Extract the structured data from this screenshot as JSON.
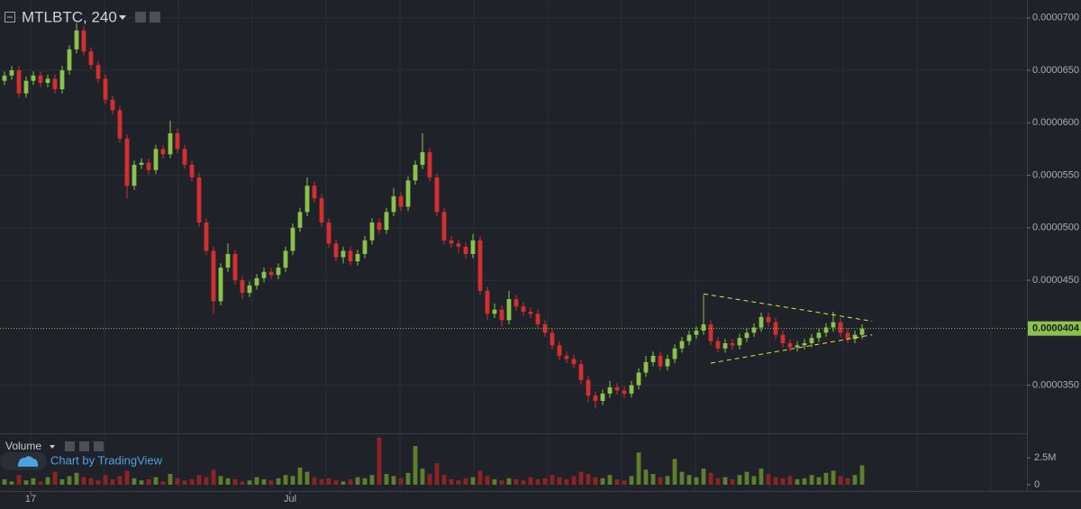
{
  "chart_data": {
    "type": "candlestick",
    "title": "MTLBTC, 240",
    "volume_title": "Volume",
    "credit": "Chart by TradingView",
    "up_color": "#8bc34a",
    "down_color": "#d32f2f",
    "volume_up_color": "#5e7f2c",
    "volume_down_color": "#8e2323",
    "grid": true,
    "xlim": [
      -0.625,
      141.875
    ],
    "xticks": [
      {
        "value": 3.625,
        "label": "17"
      },
      {
        "value": 39.625,
        "label": "Jul"
      }
    ],
    "xgrid": [
      3.625,
      13.875,
      24.125,
      34.375,
      44.625,
      54.875,
      65.125,
      75.375,
      85.625,
      95.875,
      106.125,
      116.375,
      126.625,
      136.875
    ],
    "ylim": [
      3.05e-05,
      7.17e-05
    ],
    "yticks": [
      {
        "value": 3.5e-05,
        "label": "0.0000350"
      },
      {
        "value": 4.5e-05,
        "label": "0.0000450"
      },
      {
        "value": 5e-05,
        "label": "0.0000500"
      },
      {
        "value": 5.5e-05,
        "label": "0.0000550"
      },
      {
        "value": 6e-05,
        "label": "0.0000600"
      },
      {
        "value": 6.5e-05,
        "label": "0.0000650"
      },
      {
        "value": 7e-05,
        "label": "0.0000700"
      }
    ],
    "last_price": 4.04e-05,
    "last_price_label": "0.0000404",
    "last_price_color": "#8bc34a",
    "trendline_color": "#e3e33a",
    "trendlines": [
      {
        "x": [
          97,
          120.4
        ],
        "y": [
          4.37e-05,
          4.11e-05
        ]
      },
      {
        "x": [
          98,
          120.4
        ],
        "y": [
          3.71e-05,
          3.98e-05
        ]
      }
    ],
    "open": [
      6.4e-05,
      6.45e-05,
      6.5e-05,
      6.28e-05,
      6.4e-05,
      6.45e-05,
      6.38e-05,
      6.42e-05,
      6.32e-05,
      6.5e-05,
      6.7e-05,
      6.88e-05,
      6.68e-05,
      6.55e-05,
      6.42e-05,
      6.22e-05,
      6.12e-05,
      5.85e-05,
      5.4e-05,
      5.6e-05,
      5.62e-05,
      5.55e-05,
      5.75e-05,
      5.7e-05,
      5.9e-05,
      5.75e-05,
      5.6e-05,
      5.48e-05,
      5.05e-05,
      4.78e-05,
      4.3e-05,
      4.62e-05,
      4.75e-05,
      4.5e-05,
      4.38e-05,
      4.45e-05,
      4.52e-05,
      4.58e-05,
      4.55e-05,
      4.62e-05,
      4.78e-05,
      5e-05,
      5.15e-05,
      5.4e-05,
      5.28e-05,
      5.05e-05,
      4.85e-05,
      4.72e-05,
      4.78e-05,
      4.68e-05,
      4.75e-05,
      4.88e-05,
      5.05e-05,
      4.98e-05,
      5.15e-05,
      5.3e-05,
      5.2e-05,
      5.45e-05,
      5.6e-05,
      5.72e-05,
      5.48e-05,
      5.15e-05,
      4.88e-05,
      4.85e-05,
      4.82e-05,
      4.75e-05,
      4.88e-05,
      4.4e-05,
      4.18e-05,
      4.22e-05,
      4.12e-05,
      4.32e-05,
      4.25e-05,
      4.2e-05,
      4.18e-05,
      4.08e-05,
      4e-05,
      3.88e-05,
      3.78e-05,
      3.75e-05,
      3.7e-05,
      3.55e-05,
      3.4e-05,
      3.35e-05,
      3.42e-05,
      3.48e-05,
      3.45e-05,
      3.42e-05,
      3.5e-05,
      3.62e-05,
      3.72e-05,
      3.78e-05,
      3.68e-05,
      3.75e-05,
      3.85e-05,
      3.92e-05,
      3.98e-05,
      4.02e-05,
      4.08e-05,
      3.92e-05,
      3.85e-05,
      3.9e-05,
      3.88e-05,
      3.95e-05,
      4e-05,
      4.05e-05,
      4.15e-05,
      4.1e-05,
      3.98e-05,
      3.9e-05,
      3.86e-05,
      3.88e-05,
      3.9e-05,
      3.95e-05,
      4e-05,
      4.05e-05,
      4.1e-05,
      4e-05,
      3.94e-05,
      3.98e-05
    ],
    "high": [
      6.49e-05,
      6.54e-05,
      6.54e-05,
      6.44e-05,
      6.49e-05,
      6.49e-05,
      6.46e-05,
      6.46e-05,
      6.54e-05,
      6.74e-05,
      6.95e-05,
      6.92e-05,
      6.72e-05,
      6.59e-05,
      6.46e-05,
      6.26e-05,
      6.16e-05,
      5.89e-05,
      5.64e-05,
      5.66e-05,
      5.66e-05,
      5.79e-05,
      5.79e-05,
      6.02e-05,
      5.94e-05,
      5.79e-05,
      5.64e-05,
      5.52e-05,
      5.09e-05,
      4.82e-05,
      4.66e-05,
      4.85e-05,
      4.79e-05,
      4.54e-05,
      4.49e-05,
      4.56e-05,
      4.62e-05,
      4.62e-05,
      4.66e-05,
      4.82e-05,
      5.04e-05,
      5.19e-05,
      5.48e-05,
      5.44e-05,
      5.32e-05,
      5.09e-05,
      4.89e-05,
      4.82e-05,
      4.82e-05,
      4.79e-05,
      4.92e-05,
      5.09e-05,
      5.09e-05,
      5.19e-05,
      5.38e-05,
      5.34e-05,
      5.49e-05,
      5.64e-05,
      5.9e-05,
      5.76e-05,
      5.52e-05,
      5.19e-05,
      4.92e-05,
      4.89e-05,
      4.86e-05,
      4.94e-05,
      4.92e-05,
      4.44e-05,
      4.28e-05,
      4.26e-05,
      4.4e-05,
      4.36e-05,
      4.29e-05,
      4.24e-05,
      4.22e-05,
      4.12e-05,
      4.04e-05,
      3.92e-05,
      3.82e-05,
      3.79e-05,
      3.74e-05,
      3.59e-05,
      3.44e-05,
      3.46e-05,
      3.54e-05,
      3.52e-05,
      3.49e-05,
      3.54e-05,
      3.66e-05,
      3.78e-05,
      3.82e-05,
      3.82e-05,
      3.79e-05,
      3.89e-05,
      3.96e-05,
      4.02e-05,
      4.06e-05,
      4.36e-05,
      4.12e-05,
      3.96e-05,
      3.94e-05,
      3.94e-05,
      3.99e-05,
      4.04e-05,
      4.09e-05,
      4.19e-05,
      4.19e-05,
      4.14e-05,
      4.02e-05,
      3.94e-05,
      3.92e-05,
      3.94e-05,
      3.99e-05,
      4.04e-05,
      4.09e-05,
      4.2e-05,
      4.14e-05,
      4.04e-05,
      4.02e-05,
      4.08e-05
    ],
    "low": [
      6.36e-05,
      6.41e-05,
      6.24e-05,
      6.24e-05,
      6.36e-05,
      6.34e-05,
      6.34e-05,
      6.28e-05,
      6.28e-05,
      6.46e-05,
      6.66e-05,
      6.64e-05,
      6.51e-05,
      6.38e-05,
      6.18e-05,
      6.08e-05,
      5.81e-05,
      5.28e-05,
      5.36e-05,
      5.56e-05,
      5.51e-05,
      5.51e-05,
      5.66e-05,
      5.66e-05,
      5.71e-05,
      5.56e-05,
      5.44e-05,
      5.01e-05,
      4.74e-05,
      4.18e-05,
      4.26e-05,
      4.58e-05,
      4.46e-05,
      4.32e-05,
      4.34e-05,
      4.41e-05,
      4.48e-05,
      4.51e-05,
      4.51e-05,
      4.58e-05,
      4.74e-05,
      4.96e-05,
      5.11e-05,
      5.24e-05,
      5.01e-05,
      4.81e-05,
      4.68e-05,
      4.66e-05,
      4.64e-05,
      4.64e-05,
      4.71e-05,
      4.84e-05,
      4.94e-05,
      4.94e-05,
      5.11e-05,
      5.16e-05,
      5.16e-05,
      5.41e-05,
      5.56e-05,
      5.44e-05,
      5.11e-05,
      4.84e-05,
      4.81e-05,
      4.76e-05,
      4.71e-05,
      4.71e-05,
      4.36e-05,
      4.12e-05,
      4.14e-05,
      4.06e-05,
      4.08e-05,
      4.21e-05,
      4.16e-05,
      4.14e-05,
      4.04e-05,
      3.96e-05,
      3.84e-05,
      3.74e-05,
      3.71e-05,
      3.66e-05,
      3.51e-05,
      3.34e-05,
      3.28e-05,
      3.31e-05,
      3.38e-05,
      3.41e-05,
      3.38e-05,
      3.38e-05,
      3.46e-05,
      3.58e-05,
      3.68e-05,
      3.64e-05,
      3.64e-05,
      3.71e-05,
      3.81e-05,
      3.88e-05,
      3.94e-05,
      3.98e-05,
      3.88e-05,
      3.81e-05,
      3.81e-05,
      3.84e-05,
      3.84e-05,
      3.91e-05,
      3.96e-05,
      4.01e-05,
      4.06e-05,
      3.94e-05,
      3.86e-05,
      3.82e-05,
      3.82e-05,
      3.84e-05,
      3.86e-05,
      3.91e-05,
      3.96e-05,
      4.01e-05,
      3.96e-05,
      3.9e-05,
      3.9e-05,
      3.94e-05
    ],
    "close": [
      6.45e-05,
      6.5e-05,
      6.28e-05,
      6.4e-05,
      6.45e-05,
      6.38e-05,
      6.42e-05,
      6.32e-05,
      6.5e-05,
      6.7e-05,
      6.88e-05,
      6.68e-05,
      6.55e-05,
      6.42e-05,
      6.22e-05,
      6.12e-05,
      5.85e-05,
      5.4e-05,
      5.6e-05,
      5.62e-05,
      5.55e-05,
      5.75e-05,
      5.7e-05,
      5.9e-05,
      5.75e-05,
      5.6e-05,
      5.48e-05,
      5.05e-05,
      4.78e-05,
      4.3e-05,
      4.62e-05,
      4.75e-05,
      4.5e-05,
      4.38e-05,
      4.45e-05,
      4.52e-05,
      4.58e-05,
      4.55e-05,
      4.62e-05,
      4.78e-05,
      5e-05,
      5.15e-05,
      5.4e-05,
      5.28e-05,
      5.05e-05,
      4.85e-05,
      4.72e-05,
      4.78e-05,
      4.68e-05,
      4.75e-05,
      4.88e-05,
      5.05e-05,
      4.98e-05,
      5.15e-05,
      5.3e-05,
      5.2e-05,
      5.45e-05,
      5.6e-05,
      5.72e-05,
      5.48e-05,
      5.15e-05,
      4.88e-05,
      4.85e-05,
      4.82e-05,
      4.75e-05,
      4.88e-05,
      4.4e-05,
      4.18e-05,
      4.22e-05,
      4.12e-05,
      4.32e-05,
      4.25e-05,
      4.2e-05,
      4.18e-05,
      4.08e-05,
      4e-05,
      3.88e-05,
      3.78e-05,
      3.75e-05,
      3.7e-05,
      3.55e-05,
      3.4e-05,
      3.35e-05,
      3.42e-05,
      3.48e-05,
      3.45e-05,
      3.42e-05,
      3.5e-05,
      3.62e-05,
      3.72e-05,
      3.78e-05,
      3.68e-05,
      3.75e-05,
      3.85e-05,
      3.92e-05,
      3.98e-05,
      4.02e-05,
      4.08e-05,
      3.92e-05,
      3.85e-05,
      3.9e-05,
      3.88e-05,
      3.95e-05,
      4e-05,
      4.05e-05,
      4.15e-05,
      4.1e-05,
      3.98e-05,
      3.9e-05,
      3.86e-05,
      3.88e-05,
      3.9e-05,
      3.95e-05,
      4e-05,
      4.05e-05,
      4.1e-05,
      4e-05,
      3.94e-05,
      3.98e-05,
      4.04e-05
    ],
    "volume": [
      500000,
      300000,
      900000,
      400000,
      600000,
      300000,
      700000,
      1200000,
      500000,
      800000,
      1100000,
      700000,
      600000,
      400000,
      900000,
      500000,
      800000,
      1300000,
      600000,
      400000,
      500000,
      700000,
      300000,
      1000000,
      600000,
      400000,
      500000,
      900000,
      700000,
      1400000,
      800000,
      600000,
      500000,
      300000,
      400000,
      700000,
      500000,
      400000,
      600000,
      900000,
      800000,
      1600000,
      1200000,
      700000,
      500000,
      600000,
      400000,
      300000,
      500000,
      700000,
      600000,
      900000,
      4400000,
      1000000,
      800000,
      600000,
      1100000,
      3600000,
      1500000,
      1000000,
      2000000,
      900000,
      500000,
      400000,
      600000,
      700000,
      1300000,
      800000,
      500000,
      400000,
      600000,
      500000,
      400000,
      700000,
      500000,
      600000,
      900000,
      700000,
      500000,
      800000,
      1200000,
      1000000,
      700000,
      600000,
      900000,
      500000,
      400000,
      800000,
      3000000,
      1400000,
      1000000,
      700000,
      800000,
      2400000,
      1200000,
      900000,
      700000,
      1500000,
      1100000,
      600000,
      700000,
      500000,
      900000,
      1200000,
      800000,
      1500000,
      1000000,
      700000,
      600000,
      800000,
      500000,
      600000,
      900000,
      700000,
      1100000,
      1300000,
      800000,
      600000,
      900000,
      1800000
    ],
    "volume_ylim": [
      0,
      4700000
    ],
    "volume_yticks": [
      0,
      {
        "value": 2500000,
        "label": "2.5M"
      }
    ]
  }
}
